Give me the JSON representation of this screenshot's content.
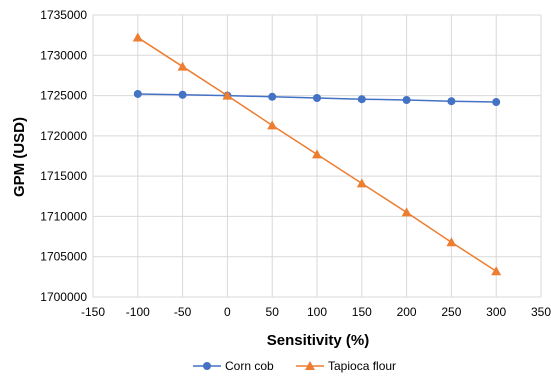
{
  "chart_data": {
    "type": "line",
    "xlabel": "Sensitivity (%)",
    "ylabel": "GPM (USD)",
    "xlim": [
      -150,
      350
    ],
    "ylim": [
      1700000,
      1735000
    ],
    "xticks": [
      -150,
      -100,
      -50,
      0,
      50,
      100,
      150,
      200,
      250,
      300,
      350
    ],
    "yticks": [
      1700000,
      1705000,
      1710000,
      1715000,
      1720000,
      1725000,
      1730000,
      1735000
    ],
    "xtick_labels": [
      "-150",
      "-100",
      "-50",
      "0",
      "50",
      "100",
      "150",
      "200",
      "250",
      "300",
      "350"
    ],
    "ytick_labels": [
      "1700000",
      "1705000",
      "1710000",
      "1715000",
      "1720000",
      "1725000",
      "1730000",
      "1735000"
    ],
    "grid": true,
    "legend_position": "bottom",
    "x": [
      -100,
      -50,
      0,
      50,
      100,
      150,
      200,
      250,
      300
    ],
    "series": [
      {
        "name": "Corn cob",
        "marker": "circle",
        "color": "#4472C4",
        "values": [
          1725200,
          1725100,
          1725000,
          1724850,
          1724700,
          1724550,
          1724450,
          1724300,
          1724200
        ]
      },
      {
        "name": "Tapioca flour",
        "marker": "triangle",
        "color": "#ED7D31",
        "values": [
          1732200,
          1728600,
          1725000,
          1721300,
          1717700,
          1714100,
          1710500,
          1706800,
          1703200
        ]
      }
    ]
  }
}
